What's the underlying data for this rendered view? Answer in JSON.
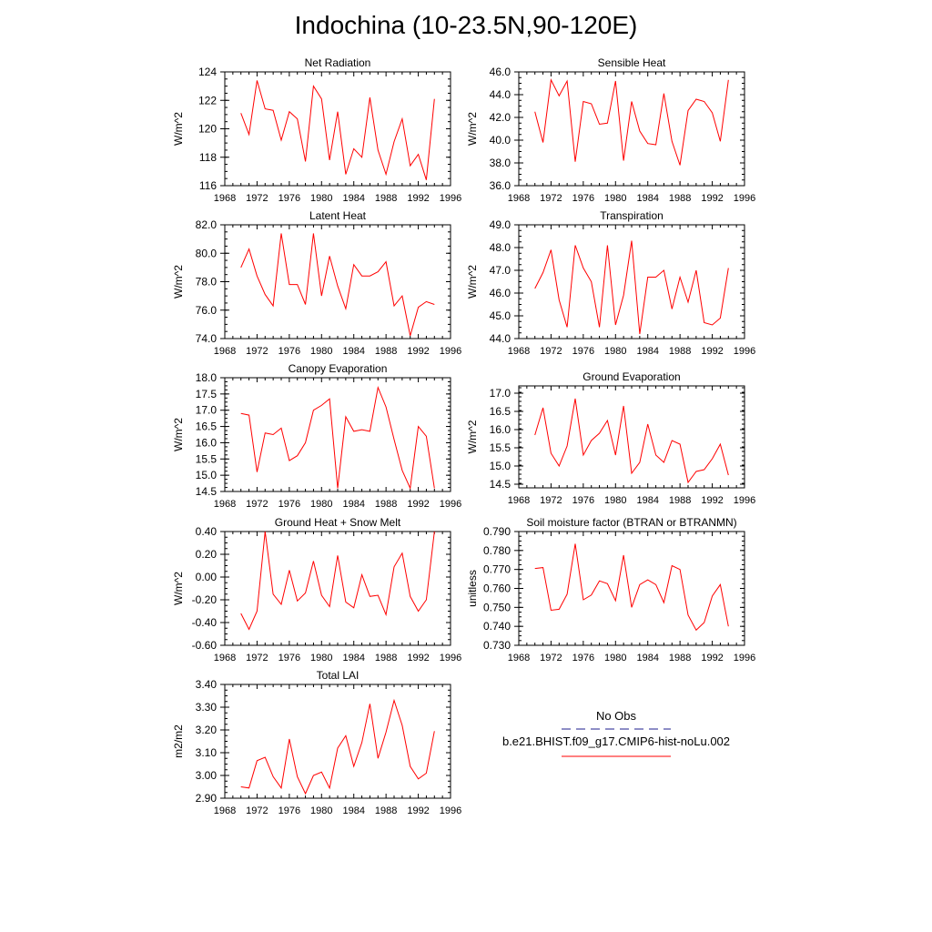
{
  "page": {
    "title": "Indochina (10-23.5N,90-120E)"
  },
  "legend": {
    "obs_label": "No Obs",
    "obs_color": "#1e1e8c",
    "model_label": "b.e21.BHIST.f09_g17.CMIP6-hist-noLu.002",
    "model_color": "#ff0000"
  },
  "chart_data": [
    {
      "type": "line",
      "title": "Net Radiation",
      "ylabel": "W/m^2",
      "xlim": [
        1968,
        1996
      ],
      "xticks": [
        1968,
        1972,
        1976,
        1980,
        1984,
        1988,
        1992,
        1996
      ],
      "ylim": [
        116,
        124
      ],
      "yticks": [
        "116",
        "118",
        "120",
        "122",
        "124"
      ],
      "x": [
        1970,
        1971,
        1972,
        1973,
        1974,
        1975,
        1976,
        1977,
        1978,
        1979,
        1980,
        1981,
        1982,
        1983,
        1984,
        1985,
        1986,
        1987,
        1988,
        1989,
        1990,
        1991,
        1992,
        1993,
        1994
      ],
      "series": [
        {
          "name": "b.e21.BHIST.f09_g17.CMIP6-hist-noLu.002",
          "values": [
            121.1,
            119.6,
            123.4,
            121.4,
            121.3,
            119.2,
            121.2,
            120.7,
            117.7,
            123.0,
            122.1,
            117.8,
            121.2,
            116.8,
            118.6,
            118.0,
            122.2,
            118.5,
            116.8,
            119.1,
            120.7,
            117.4,
            118.2,
            116.4,
            122.1
          ]
        }
      ]
    },
    {
      "type": "line",
      "title": "Sensible Heat",
      "ylabel": "W/m^2",
      "xlim": [
        1968,
        1996
      ],
      "xticks": [
        1968,
        1972,
        1976,
        1980,
        1984,
        1988,
        1992,
        1996
      ],
      "ylim": [
        36,
        46
      ],
      "yticks": [
        "36.0",
        "38.0",
        "40.0",
        "42.0",
        "44.0",
        "46.0"
      ],
      "x": [
        1970,
        1971,
        1972,
        1973,
        1974,
        1975,
        1976,
        1977,
        1978,
        1979,
        1980,
        1981,
        1982,
        1983,
        1984,
        1985,
        1986,
        1987,
        1988,
        1989,
        1990,
        1991,
        1992,
        1993,
        1994
      ],
      "series": [
        {
          "name": "b.e21.BHIST.f09_g17.CMIP6-hist-noLu.002",
          "values": [
            42.5,
            39.8,
            45.3,
            43.9,
            45.2,
            38.1,
            43.4,
            43.2,
            41.4,
            41.5,
            45.2,
            38.2,
            43.4,
            40.8,
            39.7,
            39.6,
            44.1,
            39.9,
            37.8,
            42.6,
            43.6,
            43.4,
            42.4,
            39.9,
            45.3
          ]
        }
      ]
    },
    {
      "type": "line",
      "title": "Latent Heat",
      "ylabel": "W/m^2",
      "xlim": [
        1968,
        1996
      ],
      "xticks": [
        1968,
        1972,
        1976,
        1980,
        1984,
        1988,
        1992,
        1996
      ],
      "ylim": [
        74,
        82
      ],
      "yticks": [
        "74.0",
        "76.0",
        "78.0",
        "80.0",
        "82.0"
      ],
      "x": [
        1970,
        1971,
        1972,
        1973,
        1974,
        1975,
        1976,
        1977,
        1978,
        1979,
        1980,
        1981,
        1982,
        1983,
        1984,
        1985,
        1986,
        1987,
        1988,
        1989,
        1990,
        1991,
        1992,
        1993,
        1994
      ],
      "series": [
        {
          "name": "b.e21.BHIST.f09_g17.CMIP6-hist-noLu.002",
          "values": [
            79.0,
            80.3,
            78.4,
            77.1,
            76.3,
            81.4,
            77.8,
            77.8,
            76.4,
            81.4,
            77.0,
            79.8,
            77.7,
            76.1,
            79.2,
            78.4,
            78.4,
            78.7,
            79.4,
            76.3,
            77.0,
            74.2,
            76.2,
            76.6,
            76.4
          ]
        }
      ]
    },
    {
      "type": "line",
      "title": "Transpiration",
      "ylabel": "W/m^2",
      "xlim": [
        1968,
        1996
      ],
      "xticks": [
        1968,
        1972,
        1976,
        1980,
        1984,
        1988,
        1992,
        1996
      ],
      "ylim": [
        44,
        49
      ],
      "yticks": [
        "44.0",
        "45.0",
        "46.0",
        "47.0",
        "48.0",
        "49.0"
      ],
      "x": [
        1970,
        1971,
        1972,
        1973,
        1974,
        1975,
        1976,
        1977,
        1978,
        1979,
        1980,
        1981,
        1982,
        1983,
        1984,
        1985,
        1986,
        1987,
        1988,
        1989,
        1990,
        1991,
        1992,
        1993,
        1994
      ],
      "series": [
        {
          "name": "b.e21.BHIST.f09_g17.CMIP6-hist-noLu.002",
          "values": [
            46.2,
            46.9,
            47.9,
            45.7,
            44.5,
            48.1,
            47.1,
            46.5,
            44.5,
            48.1,
            44.6,
            45.9,
            48.3,
            44.2,
            46.7,
            46.7,
            47.0,
            45.3,
            46.7,
            45.6,
            47.0,
            44.7,
            44.6,
            44.9,
            47.1
          ]
        }
      ]
    },
    {
      "type": "line",
      "title": "Canopy Evaporation",
      "ylabel": "W/m^2",
      "xlim": [
        1968,
        1996
      ],
      "xticks": [
        1968,
        1972,
        1976,
        1980,
        1984,
        1988,
        1992,
        1996
      ],
      "ylim": [
        14.5,
        18.0
      ],
      "yticks": [
        "14.5",
        "15.0",
        "15.5",
        "16.0",
        "16.5",
        "17.0",
        "17.5",
        "18.0"
      ],
      "x": [
        1970,
        1971,
        1972,
        1973,
        1974,
        1975,
        1976,
        1977,
        1978,
        1979,
        1980,
        1981,
        1982,
        1983,
        1984,
        1985,
        1986,
        1987,
        1988,
        1989,
        1990,
        1991,
        1992,
        1993,
        1994
      ],
      "series": [
        {
          "name": "b.e21.BHIST.f09_g17.CMIP6-hist-noLu.002",
          "values": [
            16.9,
            16.85,
            15.1,
            16.3,
            16.25,
            16.45,
            15.45,
            15.6,
            16.0,
            17.0,
            17.15,
            17.35,
            14.6,
            16.8,
            16.35,
            16.4,
            16.35,
            17.7,
            17.1,
            16.1,
            15.15,
            14.6,
            16.5,
            16.2,
            14.6
          ]
        }
      ]
    },
    {
      "type": "line",
      "title": "Ground Evaporation",
      "ylabel": "W/m^2",
      "xlim": [
        1968,
        1996
      ],
      "xticks": [
        1968,
        1972,
        1976,
        1980,
        1984,
        1988,
        1992,
        1996
      ],
      "ylim": [
        14.4,
        17.2
      ],
      "yticks": [
        "14.5",
        "15.0",
        "15.5",
        "16.0",
        "16.5",
        "17.0"
      ],
      "x": [
        1970,
        1971,
        1972,
        1973,
        1974,
        1975,
        1976,
        1977,
        1978,
        1979,
        1980,
        1981,
        1982,
        1983,
        1984,
        1985,
        1986,
        1987,
        1988,
        1989,
        1990,
        1991,
        1992,
        1993,
        1994
      ],
      "series": [
        {
          "name": "b.e21.BHIST.f09_g17.CMIP6-hist-noLu.002",
          "values": [
            15.85,
            16.6,
            15.35,
            15.0,
            15.55,
            16.85,
            15.3,
            15.7,
            15.9,
            16.25,
            15.3,
            16.65,
            14.8,
            15.1,
            16.15,
            15.3,
            15.1,
            15.7,
            15.6,
            14.55,
            14.85,
            14.9,
            15.2,
            15.6,
            14.75
          ]
        }
      ]
    },
    {
      "type": "line",
      "title": "Ground Heat + Snow Melt",
      "ylabel": "W/m^2",
      "xlim": [
        1968,
        1996
      ],
      "xticks": [
        1968,
        1972,
        1976,
        1980,
        1984,
        1988,
        1992,
        1996
      ],
      "ylim": [
        -0.6,
        0.4
      ],
      "yticks": [
        "-0.60",
        "-0.40",
        "-0.20",
        "0.00",
        "0.20",
        "0.40"
      ],
      "x": [
        1970,
        1971,
        1972,
        1973,
        1974,
        1975,
        1976,
        1977,
        1978,
        1979,
        1980,
        1981,
        1982,
        1983,
        1984,
        1985,
        1986,
        1987,
        1988,
        1989,
        1990,
        1991,
        1992,
        1993,
        1994
      ],
      "series": [
        {
          "name": "b.e21.BHIST.f09_g17.CMIP6-hist-noLu.002",
          "values": [
            -0.32,
            -0.46,
            -0.3,
            0.4,
            -0.15,
            -0.24,
            0.06,
            -0.21,
            -0.14,
            0.14,
            -0.16,
            -0.26,
            0.19,
            -0.22,
            -0.27,
            0.02,
            -0.17,
            -0.16,
            -0.33,
            0.09,
            0.21,
            -0.17,
            -0.3,
            -0.2,
            0.4
          ]
        }
      ]
    },
    {
      "type": "line",
      "title": "Soil moisture factor (BTRAN or BTRANMN)",
      "ylabel": "unitless",
      "xlim": [
        1968,
        1996
      ],
      "xticks": [
        1968,
        1972,
        1976,
        1980,
        1984,
        1988,
        1992,
        1996
      ],
      "ylim": [
        0.73,
        0.79
      ],
      "yticks": [
        "0.730",
        "0.740",
        "0.750",
        "0.760",
        "0.770",
        "0.780",
        "0.790"
      ],
      "x": [
        1970,
        1971,
        1972,
        1973,
        1974,
        1975,
        1976,
        1977,
        1978,
        1979,
        1980,
        1981,
        1982,
        1983,
        1984,
        1985,
        1986,
        1987,
        1988,
        1989,
        1990,
        1991,
        1992,
        1993,
        1994
      ],
      "series": [
        {
          "name": "b.e21.BHIST.f09_g17.CMIP6-hist-noLu.002",
          "values": [
            0.7705,
            0.771,
            0.7485,
            0.749,
            0.757,
            0.7835,
            0.754,
            0.7565,
            0.764,
            0.7625,
            0.7535,
            0.7775,
            0.75,
            0.762,
            0.7645,
            0.762,
            0.7525,
            0.772,
            0.77,
            0.746,
            0.738,
            0.742,
            0.756,
            0.762,
            0.74
          ]
        }
      ]
    },
    {
      "type": "line",
      "title": "Total LAI",
      "ylabel": "m2/m2",
      "xlim": [
        1968,
        1996
      ],
      "xticks": [
        1968,
        1972,
        1976,
        1980,
        1984,
        1988,
        1992,
        1996
      ],
      "ylim": [
        2.9,
        3.4
      ],
      "yticks": [
        "2.90",
        "3.00",
        "3.10",
        "3.20",
        "3.30",
        "3.40"
      ],
      "x": [
        1970,
        1971,
        1972,
        1973,
        1974,
        1975,
        1976,
        1977,
        1978,
        1979,
        1980,
        1981,
        1982,
        1983,
        1984,
        1985,
        1986,
        1987,
        1988,
        1989,
        1990,
        1991,
        1992,
        1993,
        1994
      ],
      "series": [
        {
          "name": "b.e21.BHIST.f09_g17.CMIP6-hist-noLu.002",
          "values": [
            2.95,
            2.945,
            3.065,
            3.08,
            2.995,
            2.945,
            3.16,
            2.995,
            2.92,
            3.0,
            3.015,
            2.945,
            3.12,
            3.175,
            3.04,
            3.145,
            3.315,
            3.075,
            3.19,
            3.33,
            3.22,
            3.04,
            2.985,
            3.01,
            3.195
          ]
        }
      ]
    }
  ]
}
